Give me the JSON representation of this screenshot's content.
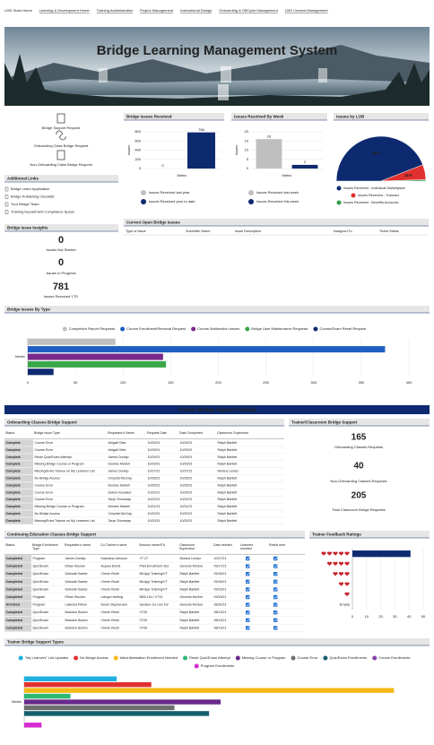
{
  "nav": {
    "links": [
      "LMS Team Home",
      "Learning & Development Home",
      "Training Administration",
      "Project Management",
      "Instructional Design",
      "Onboarding & OffCycle Management",
      "LMS Content Management"
    ]
  },
  "header": {
    "title": "Bridge Learning Management System"
  },
  "quick_links": [
    "Bridge Support Request",
    "Onboarding Class Bridge Request",
    "Non-Onboarding Class Bridge Request"
  ],
  "additional_links": {
    "title": "Additional Links",
    "items": [
      "Bridge Learn Application",
      "Bridge Publishing Checklist",
      "Your Bridge Team",
      "Training Department Compliance Space"
    ]
  },
  "issue_insights": {
    "title": "Bridge Issue Insights",
    "stats": [
      {
        "value": 0,
        "label": "Issues Not Started",
        "color": "#f2c40f"
      },
      {
        "value": 0,
        "label": "Issues In Progress",
        "color": "#2e8b3a"
      },
      {
        "value": 781,
        "label": "Issues Resolved YTD",
        "color": "#1a2f6e"
      }
    ]
  },
  "charts": {
    "issues_received": {
      "type": "bar",
      "title": "Bridge Issues Received",
      "y_label": "Issues",
      "categories": [
        "Metric"
      ],
      "ylim": [
        0,
        800
      ],
      "yticks": [
        0,
        200,
        400,
        600,
        800
      ],
      "series": [
        {
          "name": "Issues Received last year",
          "color": "#bfbfbf",
          "values": [
            0
          ]
        },
        {
          "name": "Issues Received year to date",
          "color": "#0d2a70",
          "values": [
            786
          ]
        }
      ]
    },
    "resolved_by_week": {
      "type": "bar",
      "title": "Issues Resolved By Week",
      "y_label": "Issues",
      "categories": [
        "Metric"
      ],
      "ylim": [
        0,
        20
      ],
      "yticks": [
        0,
        5,
        10,
        15,
        20
      ],
      "series": [
        {
          "name": "Issues Resolved last week",
          "color": "#bfbfbf",
          "values": [
            16
          ]
        },
        {
          "name": "Issues Resolved this week",
          "color": "#0d2a70",
          "values": [
            2
          ]
        }
      ]
    },
    "issues_by_lob": {
      "type": "pie",
      "title": "Issues by LOB",
      "categories": [
        "Issues Received - Individual Marketplace",
        "Issues Received - Tranzact",
        "Issues Received - Benefits Accounts"
      ],
      "values": [
        89,
        11,
        1
      ],
      "value_labels": [
        "89%",
        "11%",
        null
      ],
      "colors": [
        "#0d2a70",
        "#e0312f",
        "#2e9e4a"
      ]
    },
    "issues_by_type": {
      "type": "hbar",
      "title": "Bridge Issues By Type",
      "categories": [
        "Metric"
      ],
      "xlim": [
        0,
        400
      ],
      "xticks": [
        0,
        50,
        100,
        150,
        200,
        250,
        300,
        350,
        400
      ],
      "series": [
        {
          "name": "Completion Report Requests",
          "color": "#c0c0c0",
          "values": [
            92
          ]
        },
        {
          "name": "Course Enrollment/Removal Request",
          "color": "#1f5fc4",
          "values": [
            375
          ]
        },
        {
          "name": "Course Malfunction Issues",
          "color": "#7a2a8c",
          "values": [
            142
          ]
        },
        {
          "name": "Bridge User Maintenance Requests",
          "color": "#3aa84a",
          "values": [
            145
          ]
        },
        {
          "name": "Course/Exam Reset Request",
          "color": "#0d2a70",
          "values": [
            27
          ]
        }
      ]
    },
    "feedback": {
      "type": "hbar",
      "title": "Trainer Feedback Ratings",
      "categories": [
        null,
        null,
        null,
        null,
        null,
        "Empty"
      ],
      "values": [
        41,
        0,
        0,
        0,
        0,
        0
      ],
      "color": "#0d2a70",
      "xlim": [
        0,
        50
      ],
      "xticks": [
        0,
        10,
        20,
        30,
        40,
        50
      ]
    },
    "support_types": {
      "type": "hbar",
      "title": "Trainer Bridge Support Types",
      "categories": [
        "Metric"
      ],
      "xlim": [
        0,
        70
      ],
      "series": [
        {
          "name": "\"My Learners\" List Updates",
          "color": "#1fb0e0",
          "values": [
            16
          ]
        },
        {
          "name": "No Bridge Access",
          "color": "#e0312f",
          "values": [
            22
          ]
        },
        {
          "name": "Want Attestation Enrollment Needed",
          "color": "#f5b915",
          "values": [
            64
          ]
        },
        {
          "name": "Reset Quiz/Exam Attempt",
          "color": "#2eb872",
          "values": [
            8
          ]
        },
        {
          "name": "Missing Course or Program",
          "color": "#6a2a8c",
          "values": [
            34
          ]
        },
        {
          "name": "Course Error",
          "color": "#6e6e6e",
          "values": [
            26
          ]
        },
        {
          "name": "Quiz/Exam Enrollments",
          "color": "#13606e",
          "values": [
            32
          ]
        },
        {
          "name": "Course Enrollments",
          "color": "#8a3fa8",
          "values": [
            0
          ]
        },
        {
          "name": "Program Enrollments",
          "color": "#d62ad0",
          "values": [
            3
          ]
        }
      ]
    }
  },
  "open_issues": {
    "title": "Current Open Bridge Issues",
    "columns": [
      "Type of Issue",
      "Submitter Name",
      "Issue Description",
      "Assigned To",
      "Ticket Status"
    ]
  },
  "details_banner": "Trainer Bridge Support Details",
  "onboarding": {
    "title": "Onboarding Classes Bridge Support",
    "columns": [
      "Status",
      "Bridge Issue Type",
      "Requestor's Name",
      "Request Date",
      "Date Completed",
      "Classroom Supervisor"
    ],
    "rows": [
      [
        "Complete",
        "Course Error",
        "Abigail Giles",
        "10/29/21",
        "10/29/21",
        "Ralph Bartlett"
      ],
      [
        "Complete",
        "Course Error",
        "Abigail Giles",
        "10/29/21",
        "10/29/21",
        "Ralph Bartlett"
      ],
      [
        "Complete",
        "Reset Quiz/Exam Attempt",
        "James Dunlap",
        "10/29/21",
        "10/29/21",
        "Ralph Bartlett"
      ],
      [
        "Complete",
        "Missing Bridge Course or Program",
        "Desiree Martell",
        "10/29/21",
        "10/29/21",
        "Ralph Bartlett"
      ],
      [
        "Complete",
        "Missing/Extra Trainee on My Learners List",
        "James Dunlap",
        "10/27/21",
        "10/27/21",
        "Monica Lenarz"
      ],
      [
        "Complete",
        "No Bridge Access",
        "Chrystal McCray",
        "10/26/21",
        "10/26/21",
        "Ralph Bartlett"
      ],
      [
        "Complete",
        "Course Error",
        "Desiree Martell",
        "10/25/21",
        "10/25/21",
        "Ralph Bartlett"
      ],
      [
        "Complete",
        "Course Error",
        "Debra Hunsaker",
        "10/22/21",
        "10/25/21",
        "Ralph Bartlett"
      ],
      [
        "Complete",
        "Course Error",
        "Taryn Shumway",
        "10/22/21",
        "10/22/21",
        "Ralph Bartlett"
      ],
      [
        "Complete",
        "Missing Bridge Course or Program",
        "Desiree Martell",
        "10/21/21",
        "10/21/21",
        "Ralph Bartlett"
      ],
      [
        "Complete",
        "No Bridge Access",
        "Chrystal McCray",
        "10/20/21",
        "10/20/21",
        "Ralph Bartlett"
      ],
      [
        "Complete",
        "Missing/Extra Trainee on My Learners List",
        "Taryn Shumway",
        "10/20/21",
        "10/20/21",
        "Ralph Bartlett"
      ]
    ]
  },
  "classroom_support": {
    "title": "Trainer/Classroom Bridge Support",
    "stats": [
      {
        "value": 165,
        "label": "Onboarding Classes Requests",
        "color": "#2e9e4a"
      },
      {
        "value": 40,
        "label": "Non-Onboarding Classes Requests",
        "color": "#13606e"
      },
      {
        "value": 205,
        "label": "Total Classroom Bridge Requests",
        "color": "#6a2a8c"
      }
    ]
  },
  "continuing_ed": {
    "title": "Continuing Education Classes Bridge Support",
    "columns": [
      "Status",
      "Bridge Enrollment Type",
      "Requester's name",
      "Co-Trainer's name",
      "Session name/ITA",
      "Classroom Supervisor",
      "Date needed",
      "Learners enrolled",
      "Result sent"
    ],
    "rows": [
      [
        "Completed",
        "Program",
        "James Dunlap",
        "Kaweana Johnson",
        "YT 27",
        "Monica Lenarz",
        "10/27/21"
      ],
      [
        "Completed",
        "Quiz/Exam",
        "Ethan Stucker",
        "Aujuea Drenk",
        "Phet Enrollment Ses",
        "Genesis McGee",
        "09/17/21"
      ],
      [
        "Completed",
        "Quiz/Exam",
        "Deborah Baxter",
        "Cherie Redd",
        "BA App Training/VT",
        "Ralph Bartlett",
        "09/16/21"
      ],
      [
        "Completed",
        "Quiz/Exam",
        "Deborah Baxter",
        "Cherie Redd",
        "BA App Training/VT",
        "Ralph Bartlett",
        "09/16/21"
      ],
      [
        "Completed",
        "Quiz/Exam",
        "Deborah Baxter",
        "Cherie Redd",
        "BA App Training/VT",
        "Ralph Bartlett",
        "09/15/21"
      ],
      [
        "Completed",
        "Program",
        "Ethan Stucker",
        "Latoya Harding",
        "NBA 10u / VT13",
        "Genesis McGee",
        "09/15/21"
      ],
      [
        "Archived",
        "Program",
        "Latiesha Pinion",
        "Derek Stephenson",
        "Session Go Live 10/",
        "Genesis McGee",
        "08/30/21"
      ],
      [
        "Completed",
        "Quiz/Exam",
        "Brandon Burton",
        "Cherie Redd",
        "VT26",
        "Ralph Bartlett",
        "08/13/21"
      ],
      [
        "Completed",
        "Quiz/Exam",
        "Brandon Burton",
        "Cherie Redd",
        "VT26",
        "Ralph Bartlett",
        "08/13/21"
      ],
      [
        "Completed",
        "Quiz/Exam",
        "Brandon Burton",
        "Cherie Redd",
        "VT26",
        "Ralph Bartlett",
        "08/13/21"
      ]
    ]
  }
}
